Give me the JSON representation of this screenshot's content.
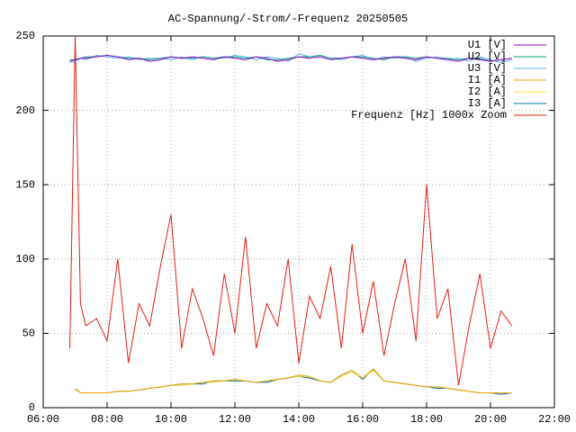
{
  "chart_data": {
    "type": "line",
    "title": "AC-Spannung/-Strom/-Frequenz 20250505",
    "x": [
      "06:50",
      "07:00",
      "07:10",
      "07:20",
      "07:40",
      "08:00",
      "08:20",
      "08:40",
      "09:00",
      "09:20",
      "09:40",
      "10:00",
      "10:20",
      "10:40",
      "11:00",
      "11:20",
      "11:40",
      "12:00",
      "12:20",
      "12:40",
      "13:00",
      "13:20",
      "13:40",
      "14:00",
      "14:20",
      "14:40",
      "15:00",
      "15:20",
      "15:40",
      "16:00",
      "16:20",
      "16:40",
      "17:00",
      "17:20",
      "17:40",
      "18:00",
      "18:20",
      "18:40",
      "19:00",
      "19:20",
      "19:40",
      "20:00",
      "20:20",
      "20:40"
    ],
    "xlim": [
      "06:00",
      "22:00"
    ],
    "xticks": [
      "06:00",
      "08:00",
      "10:00",
      "12:00",
      "14:00",
      "16:00",
      "18:00",
      "20:00",
      "22:00"
    ],
    "ylim": [
      0,
      250
    ],
    "yticks": [
      0,
      50,
      100,
      150,
      200,
      250
    ],
    "grid": true,
    "legend": "top-right",
    "series": [
      {
        "name": "U1 [V]",
        "color": "#9400d3",
        "values": [
          233,
          234,
          235,
          235,
          236,
          237,
          236,
          234,
          235,
          233,
          234,
          236,
          235,
          236,
          235,
          234,
          236,
          235,
          234,
          236,
          235,
          233,
          234,
          236,
          235,
          236,
          234,
          235,
          236,
          235,
          234,
          235,
          236,
          235,
          234,
          236,
          235,
          234,
          233,
          235,
          234,
          233,
          234,
          235
        ]
      },
      {
        "name": "U2 [V]",
        "color": "#009e73",
        "values": [
          234,
          234,
          235,
          236,
          236,
          237,
          236,
          235,
          235,
          234,
          235,
          236,
          235,
          235,
          236,
          235,
          236,
          236,
          235,
          236,
          234,
          234,
          235,
          236,
          236,
          237,
          235,
          235,
          236,
          236,
          235,
          234,
          236,
          236,
          235,
          236,
          235,
          235,
          234,
          235,
          235,
          233,
          234,
          235
        ]
      },
      {
        "name": "U3 [V]",
        "color": "#56b4e9",
        "values": [
          232,
          233,
          235,
          234,
          237,
          236,
          235,
          236,
          234,
          235,
          235,
          234,
          236,
          234,
          236,
          235,
          235,
          237,
          236,
          234,
          236,
          235,
          233,
          238,
          236,
          237,
          235,
          234,
          236,
          237,
          234,
          236,
          235,
          236,
          233,
          235,
          236,
          234,
          235,
          233,
          236,
          234,
          232,
          234
        ]
      },
      {
        "name": "I1 [A]",
        "color": "#e69f00",
        "values": [
          null,
          13,
          10,
          10,
          10,
          10,
          11,
          11,
          12,
          13,
          14,
          15,
          16,
          16,
          17,
          18,
          18,
          19,
          18,
          17,
          18,
          19,
          20,
          22,
          21,
          18,
          17,
          22,
          25,
          20,
          26,
          18,
          17,
          16,
          15,
          14,
          14,
          13,
          12,
          11,
          10,
          10,
          10,
          10
        ]
      },
      {
        "name": "I2 [A]",
        "color": "#f0e442",
        "values": [
          null,
          12,
          10,
          10,
          10,
          10,
          11,
          11,
          12,
          13,
          14,
          15,
          15,
          16,
          17,
          17,
          18,
          19,
          18,
          17,
          18,
          19,
          20,
          21,
          21,
          18,
          17,
          21,
          24,
          20,
          25,
          18,
          17,
          16,
          15,
          14,
          14,
          13,
          12,
          11,
          10,
          10,
          10,
          10
        ]
      },
      {
        "name": "I3 [A]",
        "color": "#0072b2",
        "values": [
          null,
          13,
          10,
          10,
          10,
          10,
          11,
          11,
          12,
          13,
          14,
          15,
          16,
          16,
          16,
          18,
          18,
          18,
          18,
          17,
          17,
          19,
          20,
          21,
          20,
          18,
          17,
          22,
          25,
          19,
          26,
          18,
          17,
          16,
          15,
          14,
          13,
          13,
          12,
          11,
          10,
          10,
          9,
          10
        ]
      },
      {
        "name": "Frequenz [Hz] 1000x Zoom",
        "color": "#e51e10",
        "values": [
          40,
          250,
          70,
          55,
          60,
          45,
          100,
          30,
          70,
          55,
          95,
          130,
          40,
          80,
          60,
          35,
          90,
          50,
          115,
          40,
          70,
          55,
          100,
          30,
          75,
          60,
          95,
          40,
          110,
          50,
          85,
          35,
          70,
          100,
          45,
          150,
          60,
          80,
          15,
          55,
          90,
          40,
          65,
          55
        ]
      }
    ]
  }
}
